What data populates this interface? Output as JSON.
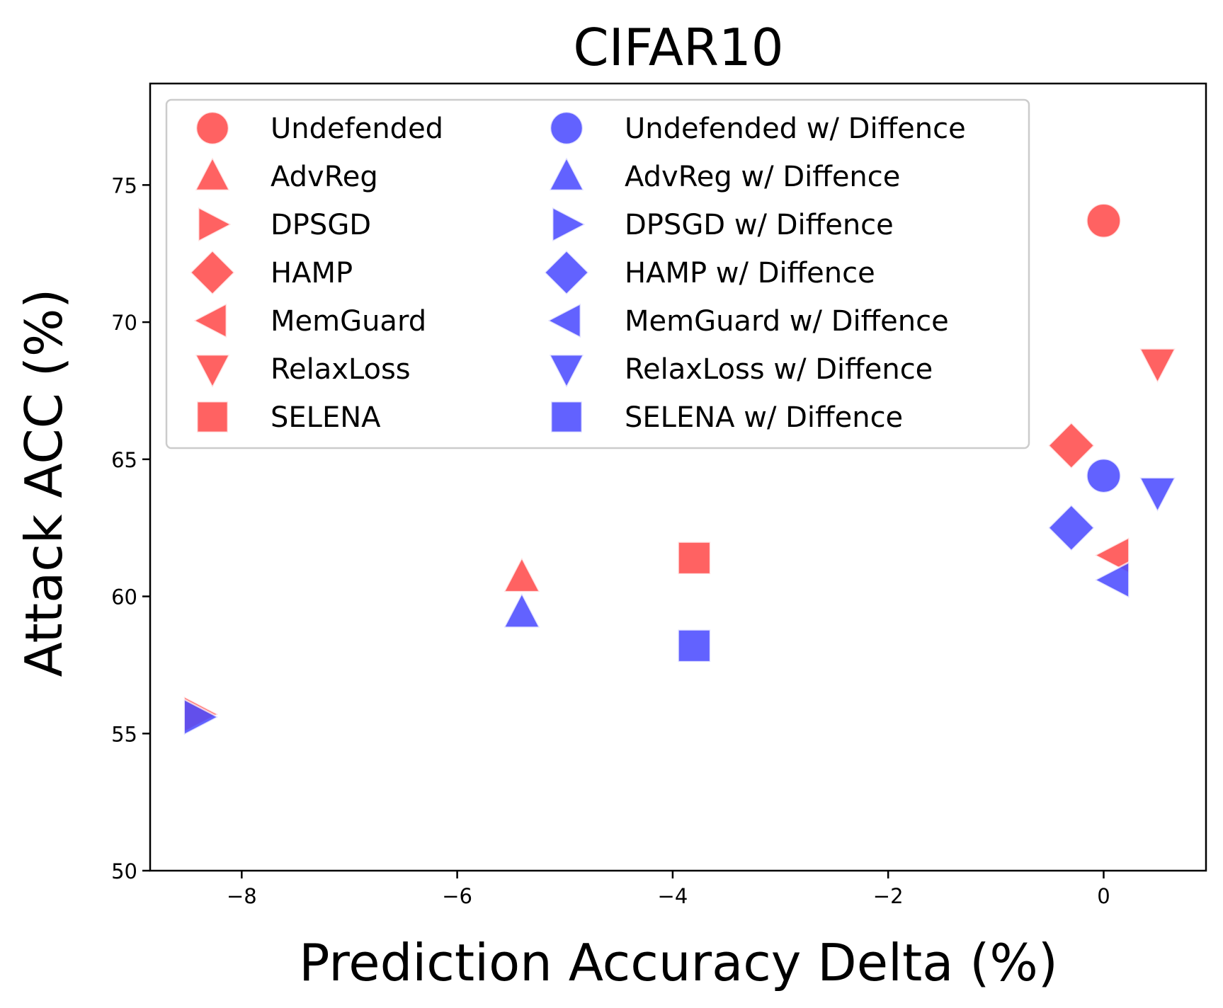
{
  "chart_data": {
    "type": "scatter",
    "title": "CIFAR10",
    "xlabel": "Prediction Accuracy Delta (%)",
    "ylabel": "Attack ACC (%)",
    "xlim": [
      -8.85,
      0.95
    ],
    "ylim": [
      50,
      78.7
    ],
    "xticks": [
      -8,
      -6,
      -4,
      -2,
      0
    ],
    "xtick_labels": [
      "−8",
      "−6",
      "−4",
      "−2",
      "0"
    ],
    "yticks": [
      50,
      55,
      60,
      65,
      70,
      75
    ],
    "ytick_labels": [
      "50",
      "55",
      "60",
      "65",
      "70",
      "75"
    ],
    "grid": false,
    "legend_position": "upper-left",
    "legend_columns": 2,
    "colors": {
      "undefended": "#ff4d4d",
      "with_diffence": "#4d4dff"
    },
    "series": [
      {
        "name": "Undefended",
        "marker": "circle",
        "color": "#ff4d4d",
        "points": [
          {
            "x": 0.0,
            "y": 73.7
          }
        ]
      },
      {
        "name": "AdvReg",
        "marker": "triangle-up",
        "color": "#ff4d4d",
        "points": [
          {
            "x": -5.4,
            "y": 60.7
          }
        ]
      },
      {
        "name": "DPSGD",
        "marker": "triangle-right",
        "color": "#ff4d4d",
        "points": [
          {
            "x": -8.4,
            "y": 55.7
          }
        ]
      },
      {
        "name": "HAMP",
        "marker": "diamond",
        "color": "#ff4d4d",
        "points": [
          {
            "x": -0.3,
            "y": 65.5
          }
        ]
      },
      {
        "name": "MemGuard",
        "marker": "triangle-left",
        "color": "#ff4d4d",
        "points": [
          {
            "x": 0.1,
            "y": 61.5
          }
        ]
      },
      {
        "name": "RelaxLoss",
        "marker": "triangle-down",
        "color": "#ff4d4d",
        "points": [
          {
            "x": 0.5,
            "y": 68.5
          }
        ]
      },
      {
        "name": "SELENA",
        "marker": "square",
        "color": "#ff4d4d",
        "points": [
          {
            "x": -3.8,
            "y": 61.4
          }
        ]
      },
      {
        "name": "Undefended w/ Diffence",
        "marker": "circle",
        "color": "#4d4dff",
        "points": [
          {
            "x": 0.0,
            "y": 64.4
          }
        ]
      },
      {
        "name": "AdvReg w/ Diffence",
        "marker": "triangle-up",
        "color": "#4d4dff",
        "points": [
          {
            "x": -5.4,
            "y": 59.4
          }
        ]
      },
      {
        "name": "DPSGD w/ Diffence",
        "marker": "triangle-right",
        "color": "#4d4dff",
        "points": [
          {
            "x": -8.4,
            "y": 55.6
          }
        ]
      },
      {
        "name": "HAMP w/ Diffence",
        "marker": "diamond",
        "color": "#4d4dff",
        "points": [
          {
            "x": -0.3,
            "y": 62.5
          }
        ]
      },
      {
        "name": "MemGuard w/ Diffence",
        "marker": "triangle-left",
        "color": "#4d4dff",
        "points": [
          {
            "x": 0.1,
            "y": 60.6
          }
        ]
      },
      {
        "name": "RelaxLoss w/ Diffence",
        "marker": "triangle-down",
        "color": "#4d4dff",
        "points": [
          {
            "x": 0.5,
            "y": 63.8
          }
        ]
      },
      {
        "name": "SELENA w/ Diffence",
        "marker": "square",
        "color": "#4d4dff",
        "points": [
          {
            "x": -3.8,
            "y": 58.2
          }
        ]
      }
    ]
  }
}
